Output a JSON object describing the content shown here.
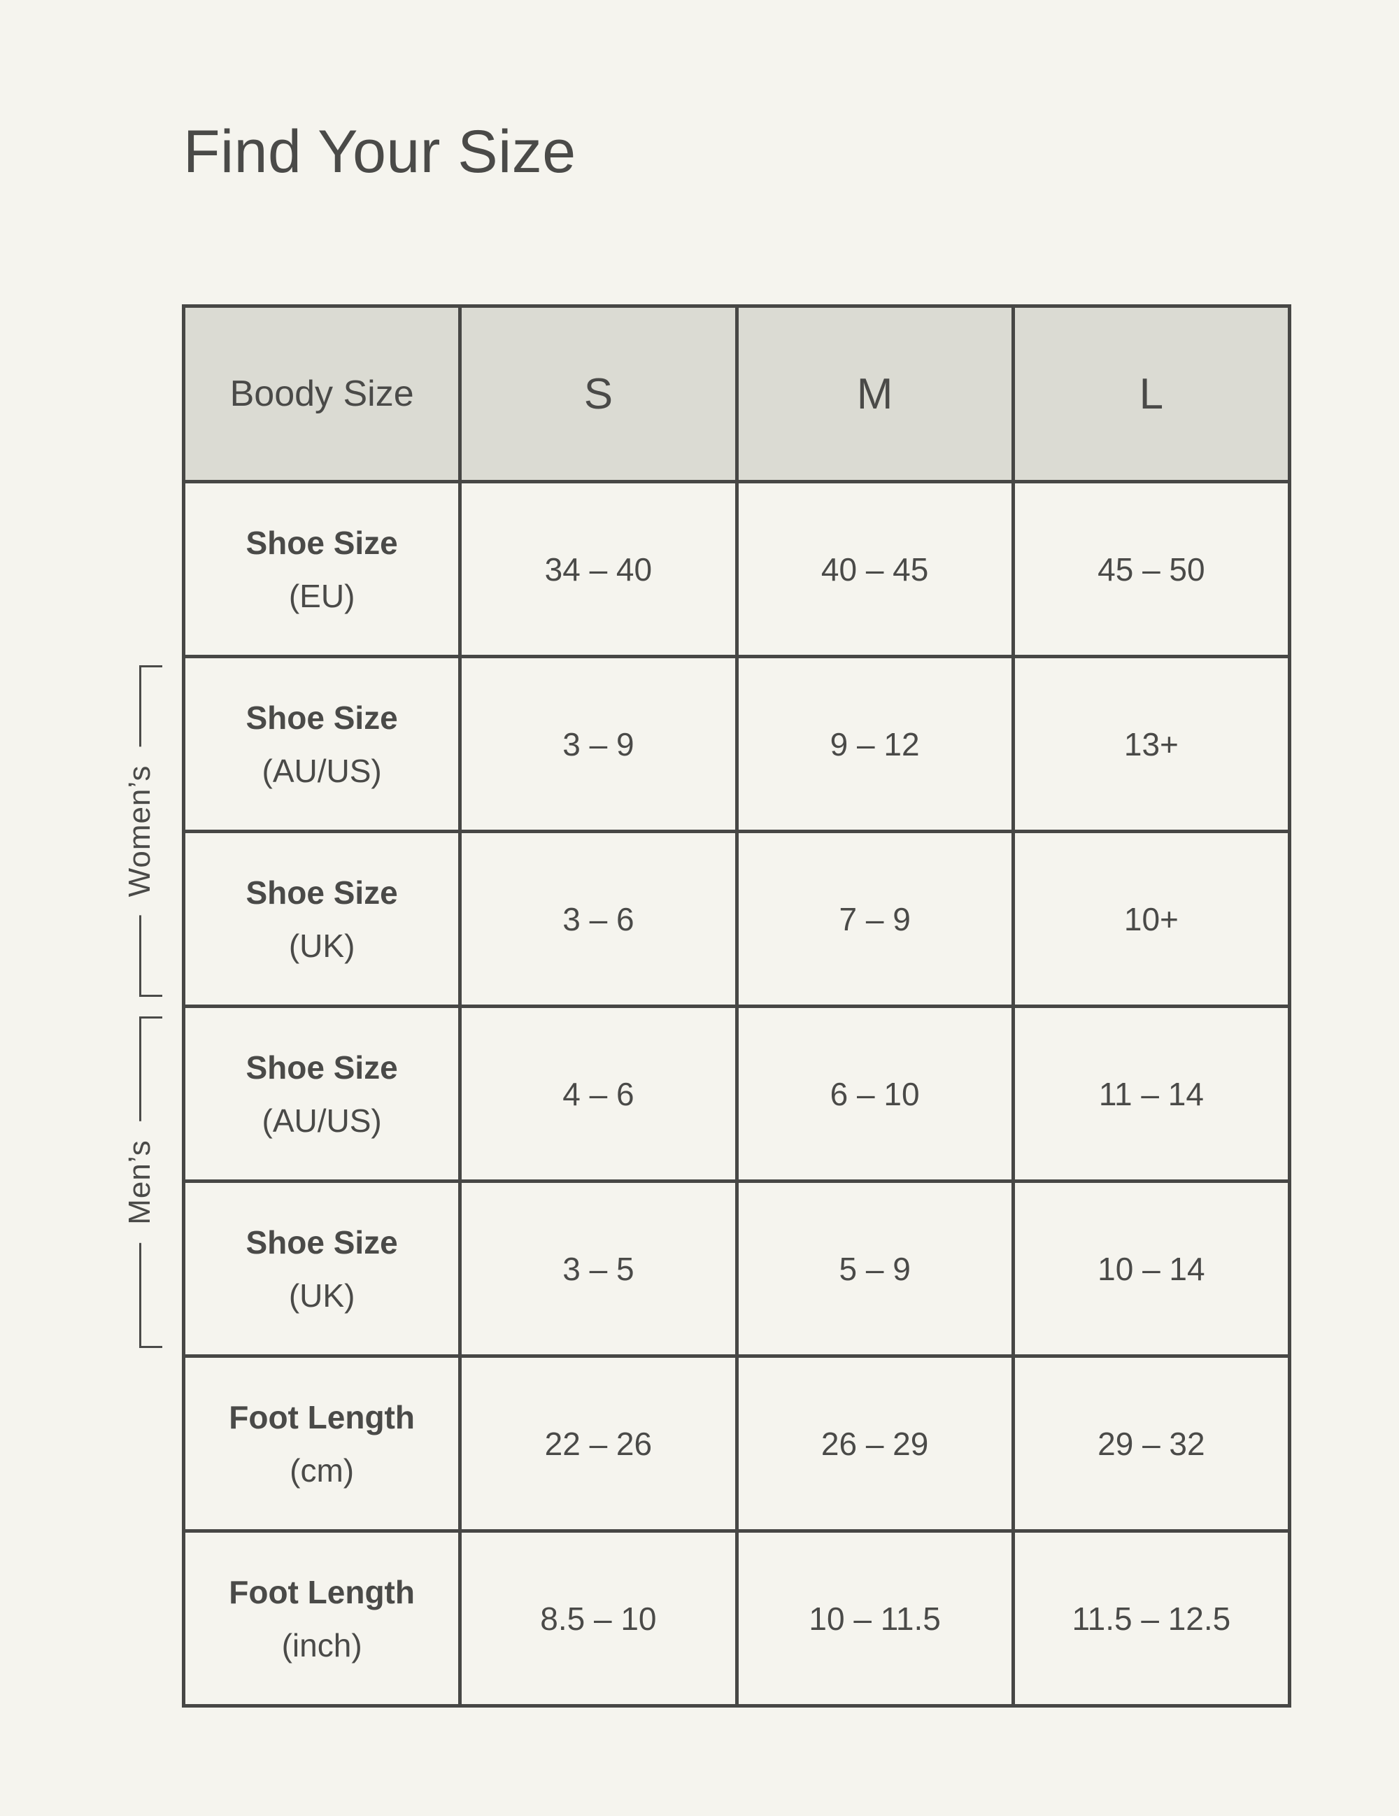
{
  "chart_data": {
    "type": "table",
    "title": "Find Your Size",
    "columns": [
      "Boody Size",
      "S",
      "M",
      "L"
    ],
    "row_groups": [
      {
        "label": "Women’s",
        "row_indices": [
          1,
          2
        ]
      },
      {
        "label": "Men’s",
        "row_indices": [
          3,
          4
        ]
      }
    ],
    "rows": [
      {
        "label": "Shoe Size",
        "unit": "(EU)",
        "values": [
          "34 – 40",
          "40 – 45",
          "45 – 50"
        ]
      },
      {
        "label": "Shoe Size",
        "unit": "(AU/US)",
        "values": [
          "3 – 9",
          "9 – 12",
          "13+"
        ]
      },
      {
        "label": "Shoe Size",
        "unit": "(UK)",
        "values": [
          "3 – 6",
          "7 – 9",
          "10+"
        ]
      },
      {
        "label": "Shoe Size",
        "unit": "(AU/US)",
        "values": [
          "4 – 6",
          "6 – 10",
          "11 – 14"
        ]
      },
      {
        "label": "Shoe Size",
        "unit": "(UK)",
        "values": [
          "3 – 5",
          "5 – 9",
          "10 – 14"
        ]
      },
      {
        "label": "Foot Length",
        "unit": "(cm)",
        "values": [
          "22 – 26",
          "26 – 29",
          "29 – 32"
        ]
      },
      {
        "label": "Foot Length",
        "unit": "(inch)",
        "values": [
          "8.5 – 10",
          "10 – 11.5",
          "11.5 – 12.5"
        ]
      }
    ],
    "legend_position": "none",
    "grid": true
  },
  "colors": {
    "background": "#F5F4EE",
    "header_bg": "#DBDBD3",
    "border": "#474745",
    "text": "#4A4A48"
  }
}
